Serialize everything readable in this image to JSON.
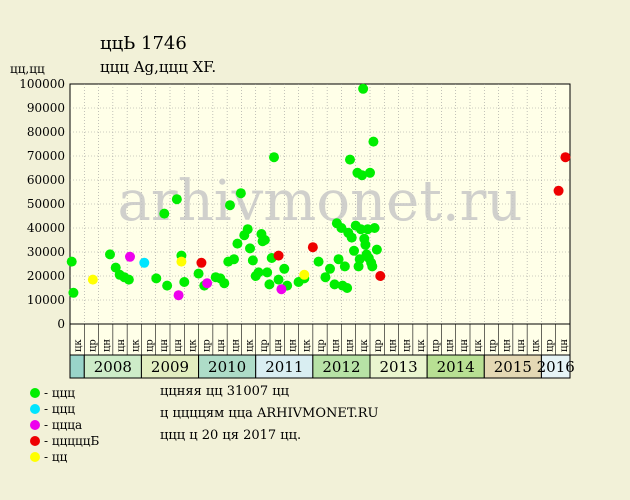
{
  "header": {
    "title": "ццЬ 1746",
    "subtitle": "ццц Ag,ццц XF.",
    "ylabel": "цц,цц"
  },
  "watermark": "arhivmonet.ru",
  "legend": [
    {
      "label": "- ццц",
      "color": "#00ee00"
    },
    {
      "label": "- ццц",
      "color": "#00e5ff"
    },
    {
      "label": "- ццца",
      "color": "#ee00ee"
    },
    {
      "label": "- цццццБ",
      "color": "#ee0000"
    },
    {
      "label": "- цц",
      "color": "#ffff00"
    }
  ],
  "footnotes": [
    "ццняя цц 31007 цц",
    "ц ццццям цца ARHIVMONET.RU",
    "ццц ц 20 ця 2017 цц."
  ],
  "chart_data": {
    "type": "scatter",
    "title": "ццЬ 1746",
    "ylabel": "цц,цц",
    "ylim": [
      0,
      100000
    ],
    "yticks": [
      0,
      10000,
      20000,
      30000,
      40000,
      50000,
      60000,
      70000,
      80000,
      90000,
      100000
    ],
    "x_range": [
      2007.75,
      2016.5
    ],
    "quarter_labels": [
      "цк",
      "цр",
      "цн",
      "цн",
      "цк",
      "цр",
      "цн",
      "цн",
      "цк",
      "цр",
      "цн",
      "цн",
      "цк",
      "цр",
      "цн",
      "цн",
      "цк",
      "цр",
      "цн",
      "цн",
      "цк",
      "цр",
      "цн",
      "цн",
      "цк",
      "цр",
      "цн",
      "цн",
      "цк",
      "цр",
      "цн",
      "цн",
      "цк",
      "цр",
      "цн"
    ],
    "years": [
      {
        "label": "",
        "start": 2007.75,
        "end": 2008.0,
        "color": "#99d4c9"
      },
      {
        "label": "2008",
        "start": 2008.0,
        "end": 2009.0,
        "color": "#cdecc8"
      },
      {
        "label": "2009",
        "start": 2009.0,
        "end": 2010.0,
        "color": "#e2eec0"
      },
      {
        "label": "2010",
        "start": 2010.0,
        "end": 2011.0,
        "color": "#aedcc8"
      },
      {
        "label": "2011",
        "start": 2011.0,
        "end": 2012.0,
        "color": "#d9eef2"
      },
      {
        "label": "2012",
        "start": 2012.0,
        "end": 2013.0,
        "color": "#b7e2a6"
      },
      {
        "label": "2013",
        "start": 2013.0,
        "end": 2014.0,
        "color": "#eaf5cf"
      },
      {
        "label": "2014",
        "start": 2014.0,
        "end": 2015.0,
        "color": "#b8e093"
      },
      {
        "label": "2015",
        "start": 2015.0,
        "end": 2016.0,
        "color": "#e4d8b4"
      },
      {
        "label": "2016",
        "start": 2016.0,
        "end": 2016.5,
        "color": "#e6f4f6"
      }
    ],
    "series": [
      {
        "color": "#00ee00",
        "points": [
          [
            2007.78,
            26000
          ],
          [
            2007.81,
            13000
          ],
          [
            2008.45,
            29000
          ],
          [
            2008.55,
            23500
          ],
          [
            2008.62,
            20500
          ],
          [
            2008.7,
            19500
          ],
          [
            2008.78,
            18500
          ],
          [
            2009.26,
            19000
          ],
          [
            2009.4,
            46000
          ],
          [
            2009.45,
            16000
          ],
          [
            2009.62,
            52000
          ],
          [
            2009.7,
            28500
          ],
          [
            2009.75,
            17500
          ],
          [
            2010.0,
            21000
          ],
          [
            2010.1,
            16000
          ],
          [
            2010.3,
            19500
          ],
          [
            2010.38,
            19000
          ],
          [
            2010.45,
            17000
          ],
          [
            2010.52,
            26000
          ],
          [
            2010.55,
            49500
          ],
          [
            2010.62,
            27000
          ],
          [
            2010.68,
            33500
          ],
          [
            2010.74,
            54500
          ],
          [
            2010.8,
            37000
          ],
          [
            2010.86,
            39500
          ],
          [
            2010.9,
            31500
          ],
          [
            2010.95,
            26500
          ],
          [
            2011.0,
            20000
          ],
          [
            2011.05,
            21500
          ],
          [
            2011.1,
            37500
          ],
          [
            2011.12,
            34500
          ],
          [
            2011.16,
            35000
          ],
          [
            2011.2,
            21500
          ],
          [
            2011.24,
            16500
          ],
          [
            2011.28,
            27500
          ],
          [
            2011.32,
            69500
          ],
          [
            2011.4,
            18500
          ],
          [
            2011.5,
            23000
          ],
          [
            2011.55,
            16000
          ],
          [
            2011.75,
            17500
          ],
          [
            2011.85,
            19000
          ],
          [
            2012.1,
            26000
          ],
          [
            2012.22,
            19500
          ],
          [
            2012.3,
            23000
          ],
          [
            2012.38,
            16500
          ],
          [
            2012.42,
            42000
          ],
          [
            2012.45,
            27000
          ],
          [
            2012.5,
            40000
          ],
          [
            2012.52,
            16000
          ],
          [
            2012.56,
            24000
          ],
          [
            2012.6,
            15000
          ],
          [
            2012.62,
            38000
          ],
          [
            2012.65,
            68500
          ],
          [
            2012.68,
            36000
          ],
          [
            2012.72,
            30500
          ],
          [
            2012.75,
            41000
          ],
          [
            2012.78,
            63000
          ],
          [
            2012.8,
            24000
          ],
          [
            2012.82,
            27000
          ],
          [
            2012.84,
            39500
          ],
          [
            2012.86,
            62000
          ],
          [
            2012.88,
            98000
          ],
          [
            2012.9,
            35500
          ],
          [
            2012.92,
            33000
          ],
          [
            2012.94,
            29000
          ],
          [
            2012.96,
            39500
          ],
          [
            2012.98,
            27500
          ],
          [
            2013.0,
            63000
          ],
          [
            2013.02,
            25500
          ],
          [
            2013.04,
            24000
          ],
          [
            2013.06,
            76000
          ],
          [
            2013.08,
            40000
          ],
          [
            2013.12,
            31000
          ]
        ]
      },
      {
        "color": "#00e5ff",
        "points": [
          [
            2009.05,
            25500
          ]
        ]
      },
      {
        "color": "#ee00ee",
        "points": [
          [
            2008.8,
            28000
          ],
          [
            2009.65,
            12000
          ],
          [
            2010.15,
            17000
          ],
          [
            2011.45,
            14500
          ]
        ]
      },
      {
        "color": "#ee0000",
        "points": [
          [
            2010.05,
            25500
          ],
          [
            2011.4,
            28500
          ],
          [
            2012.0,
            32000
          ],
          [
            2013.18,
            20000
          ],
          [
            2016.3,
            55500
          ],
          [
            2016.42,
            69500
          ]
        ]
      },
      {
        "color": "#ffff00",
        "points": [
          [
            2008.15,
            18500
          ],
          [
            2009.7,
            26000
          ],
          [
            2011.85,
            20500
          ]
        ]
      }
    ]
  }
}
